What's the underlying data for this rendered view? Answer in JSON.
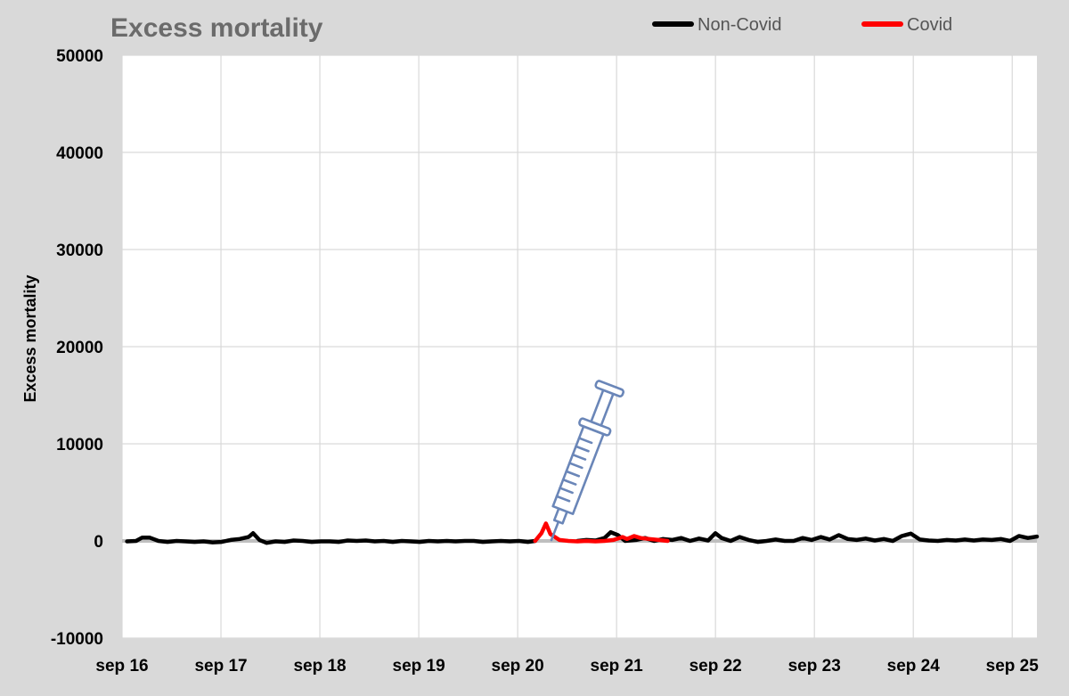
{
  "chart_data": {
    "type": "line",
    "title": "Excess mortality",
    "ylabel": "Excess mortality",
    "xlabel": "",
    "ylim": [
      -10000,
      50000
    ],
    "y_ticks": [
      "50000",
      "40000",
      "30000",
      "20000",
      "10000",
      "0",
      "-10000"
    ],
    "x_ticks": [
      "sep 16",
      "sep 17",
      "sep 18",
      "sep 19",
      "sep 20",
      "sep 21",
      "sep 22",
      "sep 23",
      "sep 24",
      "sep 25"
    ],
    "x_range_years": [
      2016.7,
      2025.95
    ],
    "grid": true,
    "legend_position": "top-right",
    "annotation_icon": "syringe-icon",
    "series": [
      {
        "name": "Non-Covid",
        "color": "#000000",
        "points": [
          [
            2016.75,
            -50
          ],
          [
            2016.85,
            0
          ],
          [
            2016.92,
            350
          ],
          [
            2017.0,
            350
          ],
          [
            2017.1,
            0
          ],
          [
            2017.2,
            -100
          ],
          [
            2017.3,
            0
          ],
          [
            2017.4,
            -50
          ],
          [
            2017.5,
            -100
          ],
          [
            2017.6,
            -50
          ],
          [
            2017.7,
            -150
          ],
          [
            2017.8,
            -100
          ],
          [
            2017.9,
            100
          ],
          [
            2018.0,
            200
          ],
          [
            2018.1,
            400
          ],
          [
            2018.15,
            800
          ],
          [
            2018.22,
            100
          ],
          [
            2018.3,
            -200
          ],
          [
            2018.4,
            -50
          ],
          [
            2018.5,
            -100
          ],
          [
            2018.6,
            50
          ],
          [
            2018.7,
            0
          ],
          [
            2018.8,
            -100
          ],
          [
            2018.9,
            -50
          ],
          [
            2019.0,
            -50
          ],
          [
            2019.1,
            -100
          ],
          [
            2019.2,
            50
          ],
          [
            2019.3,
            0
          ],
          [
            2019.4,
            50
          ],
          [
            2019.5,
            -50
          ],
          [
            2019.6,
            0
          ],
          [
            2019.7,
            -100
          ],
          [
            2019.8,
            0
          ],
          [
            2019.9,
            -50
          ],
          [
            2020.0,
            -100
          ],
          [
            2020.1,
            0
          ],
          [
            2020.2,
            -50
          ],
          [
            2020.3,
            0
          ],
          [
            2020.4,
            -50
          ],
          [
            2020.5,
            0
          ],
          [
            2020.6,
            0
          ],
          [
            2020.7,
            -100
          ],
          [
            2020.8,
            -50
          ],
          [
            2020.9,
            0
          ],
          [
            2021.0,
            -50
          ],
          [
            2021.1,
            0
          ],
          [
            2021.2,
            -100
          ],
          [
            2021.28,
            0
          ]
        ],
        "points_late": [
          [
            2021.75,
            0
          ],
          [
            2021.85,
            100
          ],
          [
            2021.95,
            50
          ],
          [
            2022.05,
            300
          ],
          [
            2022.12,
            900
          ],
          [
            2022.2,
            600
          ],
          [
            2022.28,
            0
          ],
          [
            2022.4,
            100
          ],
          [
            2022.5,
            300
          ],
          [
            2022.6,
            0
          ],
          [
            2022.7,
            200
          ],
          [
            2022.8,
            100
          ],
          [
            2022.9,
            300
          ],
          [
            2023.0,
            0
          ],
          [
            2023.1,
            250
          ],
          [
            2023.2,
            50
          ],
          [
            2023.28,
            800
          ],
          [
            2023.35,
            300
          ],
          [
            2023.45,
            0
          ],
          [
            2023.55,
            400
          ],
          [
            2023.65,
            100
          ],
          [
            2023.75,
            -100
          ],
          [
            2023.85,
            0
          ],
          [
            2023.95,
            150
          ],
          [
            2024.05,
            0
          ],
          [
            2024.15,
            0
          ],
          [
            2024.25,
            300
          ],
          [
            2024.35,
            100
          ],
          [
            2024.45,
            400
          ],
          [
            2024.55,
            150
          ],
          [
            2024.65,
            600
          ],
          [
            2024.75,
            200
          ],
          [
            2024.85,
            100
          ],
          [
            2024.95,
            250
          ],
          [
            2025.05,
            50
          ],
          [
            2025.15,
            200
          ],
          [
            2025.25,
            0
          ],
          [
            2025.35,
            500
          ],
          [
            2025.45,
            750
          ],
          [
            2025.55,
            150
          ],
          [
            2025.65,
            50
          ],
          [
            2025.75,
            0
          ],
          [
            2025.85,
            100
          ],
          [
            2025.95,
            50
          ],
          [
            2026.05,
            150
          ],
          [
            2026.15,
            50
          ],
          [
            2026.25,
            150
          ],
          [
            2026.35,
            100
          ],
          [
            2026.45,
            200
          ],
          [
            2026.55,
            0
          ],
          [
            2026.65,
            500
          ],
          [
            2026.75,
            300
          ],
          [
            2026.85,
            450
          ]
        ]
      },
      {
        "name": "Covid",
        "color": "#ff0000",
        "points": [
          [
            2021.28,
            0
          ],
          [
            2021.35,
            800
          ],
          [
            2021.4,
            1800
          ],
          [
            2021.45,
            700
          ],
          [
            2021.55,
            100
          ],
          [
            2021.65,
            0
          ],
          [
            2021.75,
            -50
          ],
          [
            2021.85,
            0
          ],
          [
            2021.95,
            -50
          ],
          [
            2022.05,
            0
          ],
          [
            2022.15,
            100
          ],
          [
            2022.25,
            400
          ],
          [
            2022.3,
            200
          ],
          [
            2022.38,
            500
          ],
          [
            2022.45,
            300
          ],
          [
            2022.55,
            200
          ],
          [
            2022.65,
            100
          ],
          [
            2022.75,
            0
          ]
        ]
      }
    ]
  }
}
